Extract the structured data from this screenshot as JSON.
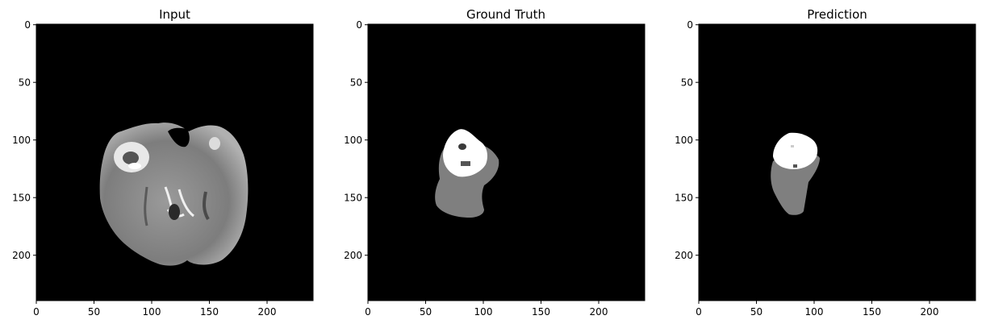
{
  "chart_data": [
    {
      "type": "image",
      "title": "Input",
      "xlim": [
        0,
        240
      ],
      "ylim": [
        240,
        0
      ],
      "xticks": [
        0,
        50,
        100,
        150,
        200
      ],
      "yticks": [
        0,
        50,
        100,
        150,
        200
      ],
      "xlabel": "",
      "ylabel": "",
      "content": "grayscale brain MRI axial slice"
    },
    {
      "type": "image",
      "title": "Ground Truth",
      "xlim": [
        0,
        240
      ],
      "ylim": [
        240,
        0
      ],
      "xticks": [
        0,
        50,
        100,
        150,
        200
      ],
      "yticks": [
        0,
        50,
        100,
        150,
        200
      ],
      "xlabel": "",
      "ylabel": "",
      "content": "segmentation mask"
    },
    {
      "type": "image",
      "title": "Prediction",
      "xlim": [
        0,
        240
      ],
      "ylim": [
        240,
        0
      ],
      "xticks": [
        0,
        50,
        100,
        150,
        200
      ],
      "yticks": [
        0,
        50,
        100,
        150,
        200
      ],
      "xlabel": "",
      "ylabel": "",
      "content": "predicted segmentation mask"
    }
  ],
  "colors": {
    "background": "#000000",
    "tissue": "#8a8a8a",
    "mask_gray": "#7f7f7f",
    "mask_white": "#ffffff",
    "mask_dark": "#3a3a3a"
  }
}
